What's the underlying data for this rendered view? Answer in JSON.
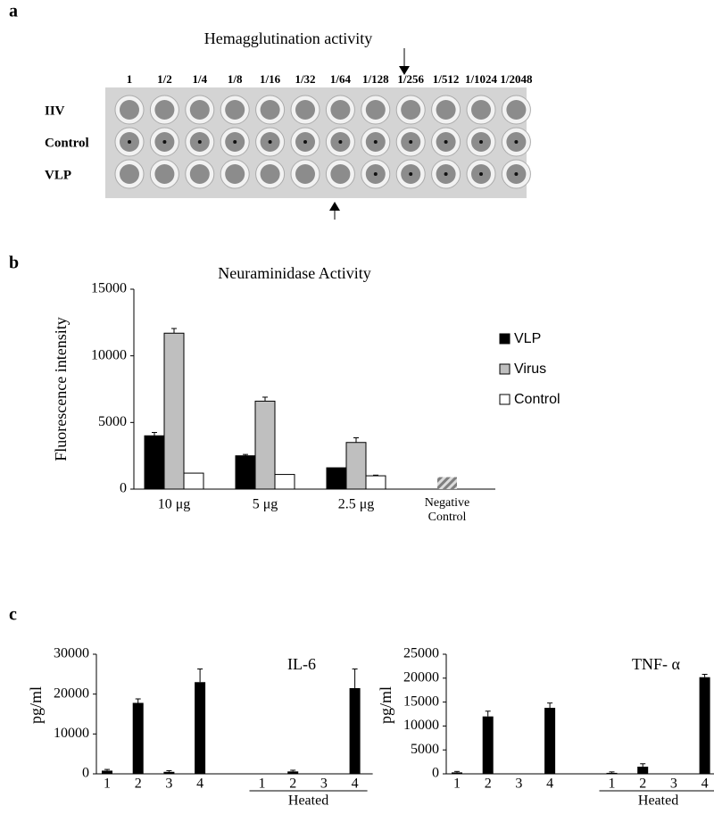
{
  "panel_labels": [
    "a",
    "b",
    "c"
  ],
  "panel_a": {
    "title": "Hemagglutination activity",
    "dilutions": [
      "1",
      "1/2",
      "1/4",
      "1/8",
      "1/16",
      "1/32",
      "1/64",
      "1/128",
      "1/256",
      "1/512",
      "1/1024",
      "1/2048"
    ],
    "rows": [
      "IIV",
      "Control",
      "VLP"
    ]
  },
  "chart_data": [
    {
      "type": "bar",
      "title": "Neuraminidase Activity",
      "y_label": "Fluorescence intensity",
      "categories": [
        "10 μg",
        "5 μg",
        "2.5 μg",
        "Negative Control"
      ],
      "series": [
        {
          "name": "VLP",
          "color": "#000000",
          "values": [
            4000,
            2500,
            1600,
            null
          ],
          "errors": [
            250,
            100,
            0,
            null
          ]
        },
        {
          "name": "Virus",
          "color": "#bfbfbf",
          "values": [
            11700,
            6600,
            3500,
            null
          ],
          "errors": [
            350,
            300,
            350,
            null
          ]
        },
        {
          "name": "Control",
          "color": "#ffffff",
          "values": [
            1200,
            1100,
            1000,
            null
          ],
          "errors": [
            0,
            0,
            50,
            null
          ]
        }
      ],
      "negative_value": 900,
      "negative_color": "#7f7f7f",
      "ylim": [
        0,
        15000
      ],
      "yticks": [
        0,
        5000,
        10000,
        15000
      ]
    },
    {
      "type": "bar",
      "title": "IL-6",
      "y_label": "pg/ml",
      "categories": [
        "1",
        "2",
        "3",
        "4",
        null,
        "1",
        "2",
        "3",
        "4"
      ],
      "values": [
        800,
        17800,
        500,
        23000,
        null,
        100,
        600,
        0,
        21500
      ],
      "errors": [
        300,
        1000,
        300,
        3300,
        null,
        0,
        300,
        0,
        4800
      ],
      "color": "#000000",
      "group_label": "Heated",
      "ylim": [
        0,
        30000
      ],
      "yticks": [
        0,
        10000,
        20000,
        30000
      ]
    },
    {
      "type": "bar",
      "title": "TNF- α",
      "y_label": "pg/ml",
      "categories": [
        "1",
        "2",
        "3",
        "4",
        null,
        "1",
        "2",
        "3",
        "4"
      ],
      "values": [
        300,
        12000,
        50,
        13800,
        null,
        200,
        1500,
        50,
        20200
      ],
      "errors": [
        200,
        1100,
        0,
        1000,
        null,
        200,
        600,
        0,
        600
      ],
      "color": "#000000",
      "group_label": "Heated",
      "ylim": [
        0,
        25000
      ],
      "yticks": [
        0,
        5000,
        10000,
        15000,
        20000,
        25000
      ]
    }
  ]
}
